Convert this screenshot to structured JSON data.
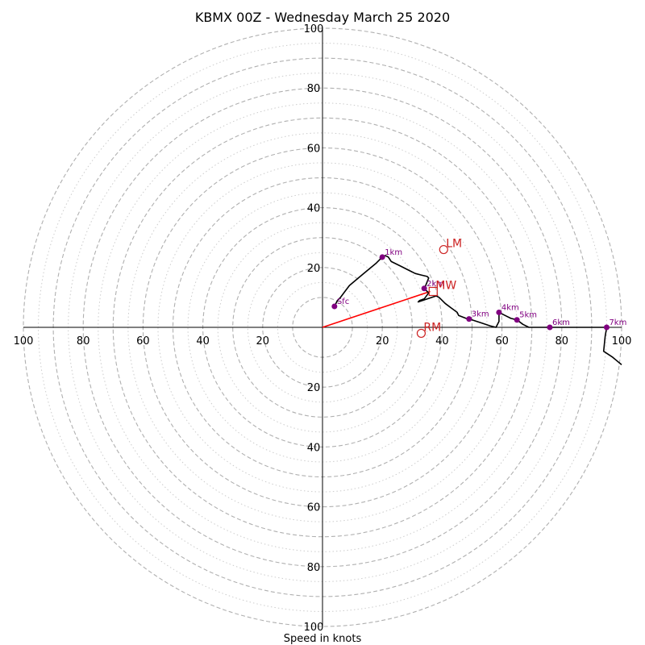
{
  "title": "KBMX 00Z - Wednesday March 25 2020",
  "xlabel": "Speed in knots",
  "colors": {
    "trace": "#000000",
    "points": "#800080",
    "motion": "#cc2222",
    "mean_wind_vector": "#ff0000",
    "major_ring": "#b0b0b0",
    "minor_ring": "#cccccc"
  },
  "chart_data": {
    "type": "scatter",
    "xlim": [
      -100,
      100
    ],
    "ylim": [
      -100,
      100
    ],
    "major_rings": [
      10,
      20,
      30,
      40,
      50,
      60,
      70,
      80,
      90,
      100
    ],
    "minor_rings": [
      15,
      25,
      35,
      45,
      55,
      65,
      75,
      85,
      95
    ],
    "x_tick_values": [
      -100,
      -80,
      -60,
      -40,
      -20,
      20,
      40,
      60,
      80,
      100
    ],
    "x_tick_labels": [
      "100",
      "80",
      "60",
      "40",
      "20",
      "20",
      "40",
      "60",
      "80",
      "100"
    ],
    "y_tick_values": [
      100,
      80,
      60,
      40,
      20,
      -20,
      -40,
      -60,
      -80,
      -100
    ],
    "y_tick_labels": [
      "100",
      "80",
      "60",
      "40",
      "20",
      "20",
      "40",
      "60",
      "80",
      "100"
    ],
    "hodograph": [
      [
        4,
        7
      ],
      [
        5,
        9
      ],
      [
        6,
        10
      ],
      [
        7.5,
        12
      ],
      [
        9,
        14
      ],
      [
        12,
        16.5
      ],
      [
        15,
        19
      ],
      [
        18,
        21.5
      ],
      [
        20,
        23.5
      ],
      [
        21,
        24
      ],
      [
        22,
        23.5
      ],
      [
        23,
        22
      ],
      [
        26,
        20.5
      ],
      [
        29,
        19
      ],
      [
        31,
        18
      ],
      [
        33,
        17.5
      ],
      [
        35,
        17
      ],
      [
        35.5,
        16.5
      ],
      [
        34.5,
        14
      ],
      [
        34,
        13
      ],
      [
        35.5,
        11.5
      ],
      [
        34,
        9.5
      ],
      [
        32.5,
        9
      ],
      [
        32,
        8.5
      ],
      [
        35,
        9.5
      ],
      [
        38,
        10.5
      ],
      [
        39,
        10
      ],
      [
        41,
        8
      ],
      [
        43,
        6.5
      ],
      [
        45,
        5
      ],
      [
        45.5,
        4
      ],
      [
        48,
        3
      ],
      [
        49,
        2.8
      ],
      [
        50,
        2.5
      ],
      [
        53,
        1.5
      ],
      [
        56,
        0.5
      ],
      [
        58,
        0
      ],
      [
        59,
        2
      ],
      [
        59,
        5
      ],
      [
        61,
        4
      ],
      [
        63,
        3
      ],
      [
        65,
        2.5
      ],
      [
        67,
        1
      ],
      [
        69,
        0
      ],
      [
        72,
        0
      ],
      [
        76,
        0
      ],
      [
        80,
        0
      ],
      [
        86,
        0
      ],
      [
        90,
        0
      ],
      [
        95,
        0
      ],
      [
        94.5,
        -3
      ],
      [
        94,
        -8
      ],
      [
        97,
        -10
      ],
      [
        100,
        -12.5
      ]
    ],
    "height_markers": [
      {
        "label": "Sfc",
        "x": 4,
        "y": 7
      },
      {
        "label": "1km",
        "x": 20,
        "y": 23.5
      },
      {
        "label": "2km",
        "x": 34,
        "y": 13
      },
      {
        "label": "3km",
        "x": 49,
        "y": 2.8
      },
      {
        "label": "4km",
        "x": 59,
        "y": 5
      },
      {
        "label": "5km",
        "x": 65,
        "y": 2.5
      },
      {
        "label": "6km",
        "x": 76,
        "y": 0
      },
      {
        "label": "7km",
        "x": 95,
        "y": 0
      }
    ],
    "storm_motion": [
      {
        "label": "LM",
        "x": 40.5,
        "y": 26,
        "marker": "circle"
      },
      {
        "label": "RM",
        "x": 33,
        "y": -2,
        "marker": "circle"
      },
      {
        "label": "MW",
        "x": 37,
        "y": 12,
        "marker": "square"
      }
    ],
    "mean_wind_vector": {
      "from": [
        0,
        0
      ],
      "to": [
        36,
        12
      ]
    }
  }
}
